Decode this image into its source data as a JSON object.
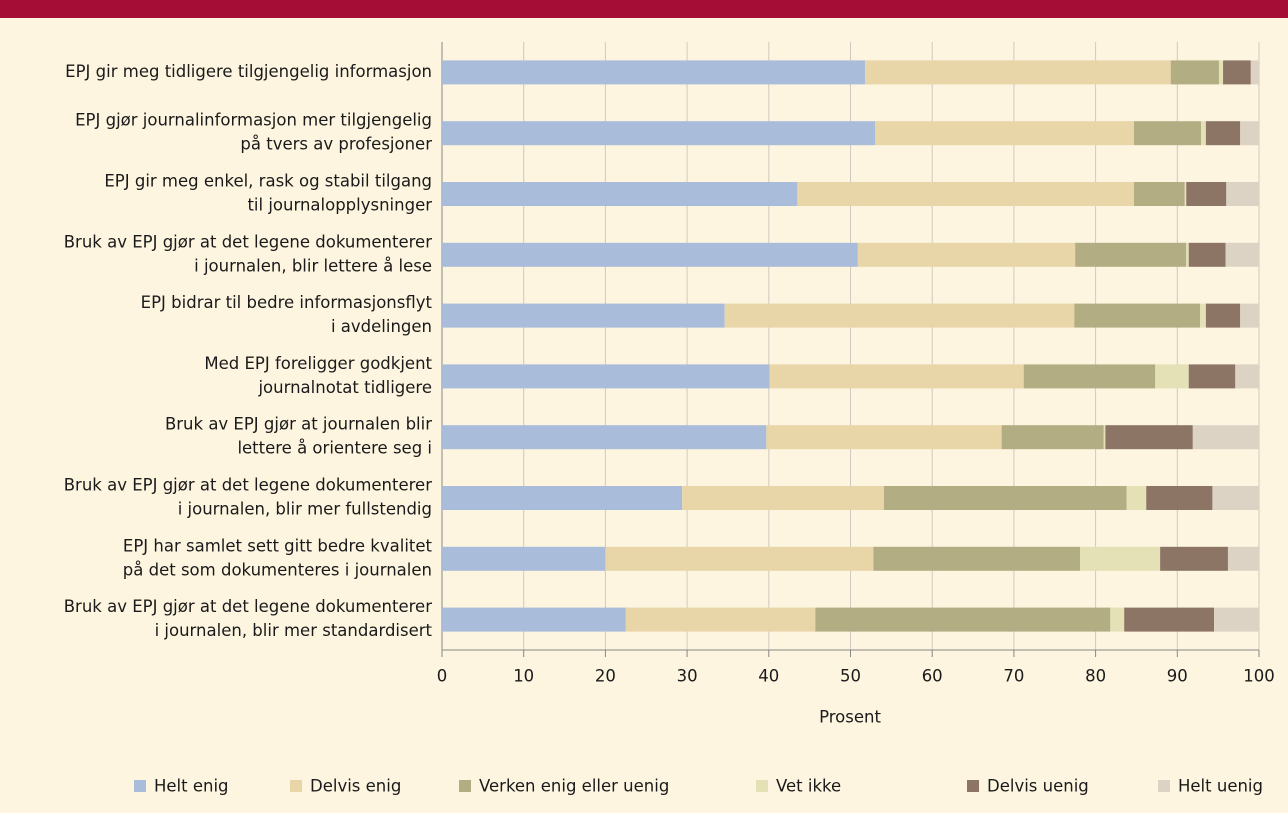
{
  "chart_data": {
    "type": "stacked-barh",
    "categories": [
      [
        "EPJ gir meg tidligere tilgjengelig informasjon"
      ],
      [
        "EPJ gjør journalinformasjon mer tilgjengelig",
        "på tvers av profesjoner"
      ],
      [
        "EPJ gir meg enkel, rask og stabil tilgang",
        "til journalopplysninger"
      ],
      [
        "Bruk av EPJ gjør at det legene dokumenterer",
        "i journalen, blir lettere å lese"
      ],
      [
        "EPJ bidrar til bedre informasjonsflyt",
        "i avdelingen"
      ],
      [
        "Med EPJ foreligger godkjent",
        "journalnotat tidligere"
      ],
      [
        "Bruk av EPJ gjør at journalen blir",
        "lettere å orientere seg i"
      ],
      [
        "Bruk av EPJ gjør at det legene dokumenterer",
        "i journalen, blir mer fullstendig"
      ],
      [
        "EPJ har samlet sett gitt bedre kvalitet",
        "på det som dokumenteres i journalen"
      ],
      [
        "Bruk av EPJ gjør at det legene dokumenterer",
        "i journalen, blir mer standardisert"
      ]
    ],
    "series": [
      {
        "name": "Helt enig",
        "color": "#a9bcd9",
        "values": [
          51.8,
          53.0,
          43.5,
          50.9,
          34.6,
          40.1,
          39.7,
          29.4,
          20.0,
          22.5
        ]
      },
      {
        "name": "Delvis enig",
        "color": "#e8d6a8",
        "values": [
          37.4,
          31.7,
          41.2,
          26.6,
          42.8,
          31.1,
          28.8,
          24.7,
          32.8,
          23.2
        ]
      },
      {
        "name": "Verken enig eller uenig",
        "color": "#b3ad83",
        "values": [
          5.9,
          8.2,
          6.2,
          13.6,
          15.4,
          16.1,
          12.5,
          29.7,
          25.3,
          36.1
        ]
      },
      {
        "name": "Vet ikke",
        "color": "#e3e1b5",
        "values": [
          0.5,
          0.6,
          0.2,
          0.3,
          0.7,
          4.1,
          0.2,
          2.4,
          9.8,
          1.7
        ]
      },
      {
        "name": "Delvis uenig",
        "color": "#8c7565",
        "values": [
          3.4,
          4.2,
          4.9,
          4.5,
          4.2,
          5.7,
          10.7,
          8.1,
          8.3,
          11.0
        ]
      },
      {
        "name": "Helt uenig",
        "color": "#dcd3c4",
        "values": [
          1.0,
          2.3,
          4.0,
          4.1,
          2.3,
          2.9,
          8.1,
          5.7,
          3.8,
          5.5
        ]
      }
    ],
    "xlim": [
      0,
      100
    ],
    "xticks": [
      0,
      10,
      20,
      30,
      40,
      50,
      60,
      70,
      80,
      90,
      100
    ],
    "xlabel": "Prosent",
    "grid": true,
    "legend": "bottom"
  }
}
